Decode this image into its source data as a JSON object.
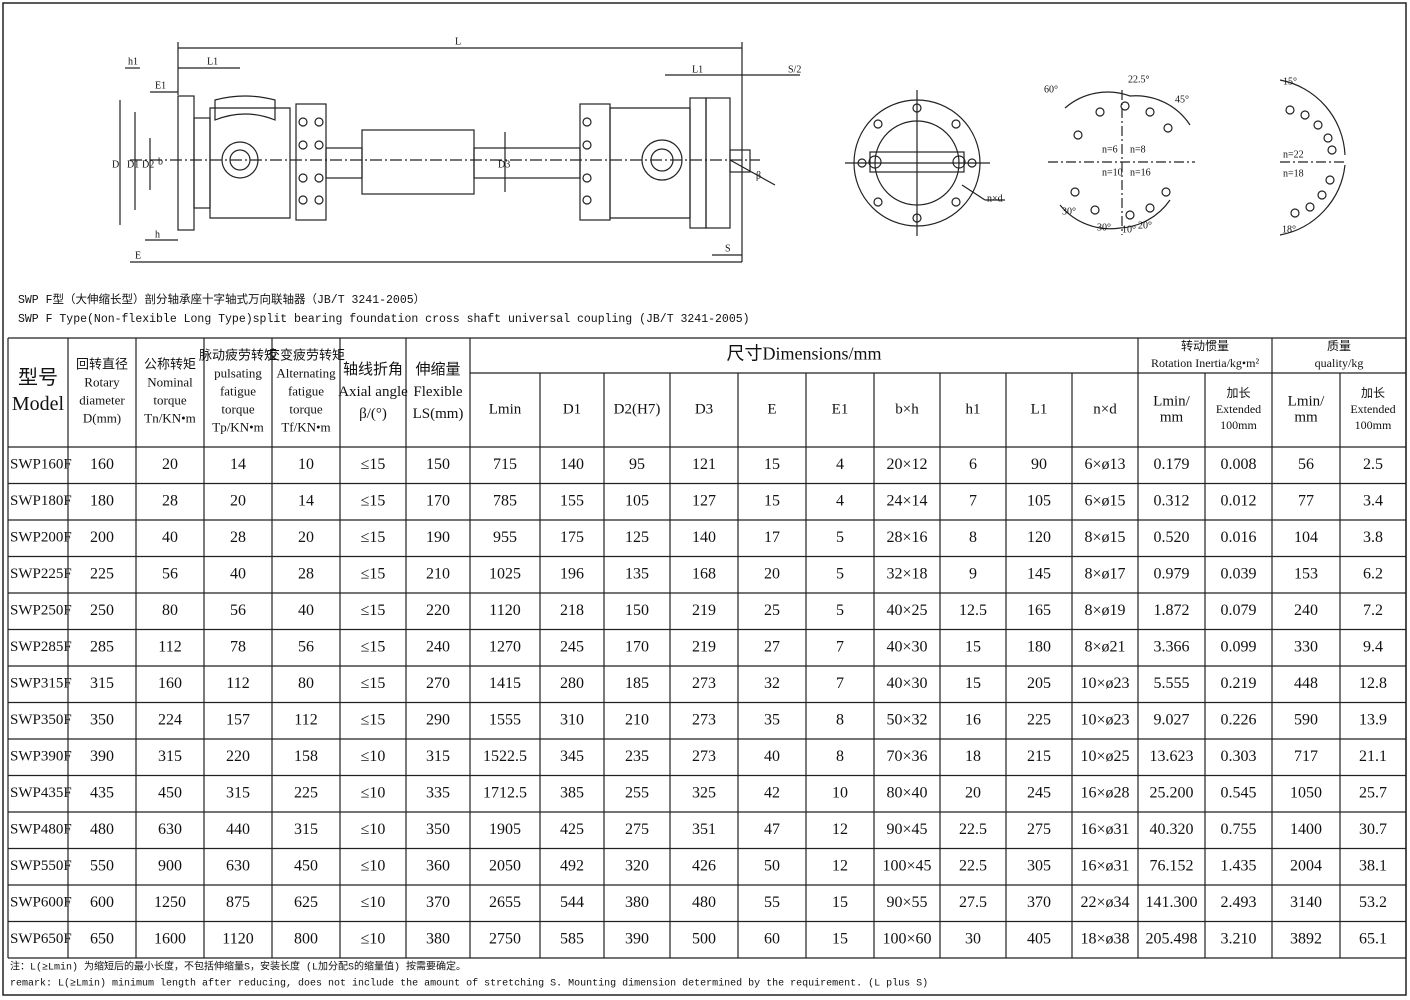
{
  "drawing": {
    "labels": [
      "L",
      "h1",
      "L1",
      "E1",
      "D",
      "D1",
      "D2",
      "b",
      "h",
      "E",
      "D3",
      "L1",
      "S/2",
      "β",
      "S",
      "n×d",
      "60°",
      "22.5°",
      "45°",
      "n=6",
      "n=8",
      "n=10",
      "n=16",
      "30°",
      "30°",
      "10°",
      "20°",
      "15°",
      "n=22",
      "n=18",
      "18°"
    ]
  },
  "caption": [
    "SWP F型（大伸缩长型）剖分轴承座十字轴式万向联轴器（JB/T 3241-2005）",
    "SWP F Type(Non-flexible Long Type)split bearing foundation cross shaft universal coupling  (JB/T 3241-2005)"
  ],
  "table": {
    "columns": [
      {
        "lines": [
          "型号",
          "Model"
        ]
      },
      {
        "lines": [
          "回转直径",
          "Rotary",
          "diameter",
          "D(mm)"
        ]
      },
      {
        "lines": [
          "公称转矩",
          "Nominal",
          "torque",
          "Tn/KN•m"
        ]
      },
      {
        "lines": [
          "脉动疲劳转矩",
          "pulsating",
          "fatigue",
          "torque",
          "Tp/KN•m"
        ]
      },
      {
        "lines": [
          "交变疲劳转矩",
          "Alternating",
          "fatigue",
          "torque",
          "Tf/KN•m"
        ]
      },
      {
        "lines": [
          "轴线折角",
          "Axial angle",
          "β/(°)"
        ]
      },
      {
        "lines": [
          "伸缩量",
          "Flexible",
          "LS(mm)"
        ]
      }
    ],
    "groups": [
      {
        "lines": [
          "尺寸Dimensions/mm"
        ],
        "subheaders": [
          {
            "lines": [
              "Lmin"
            ]
          },
          {
            "lines": [
              "D1"
            ]
          },
          {
            "lines": [
              "D2(H7)"
            ]
          },
          {
            "lines": [
              "D3"
            ]
          },
          {
            "lines": [
              "E"
            ]
          },
          {
            "lines": [
              "E1"
            ]
          },
          {
            "lines": [
              "b×h"
            ]
          },
          {
            "lines": [
              "h1"
            ]
          },
          {
            "lines": [
              "L1"
            ]
          },
          {
            "lines": [
              "n×d"
            ]
          }
        ]
      },
      {
        "lines": [
          "转动惯量",
          "Rotation Inertia/kg•m²"
        ],
        "subheaders": [
          {
            "lines": [
              "Lmin/",
              "mm"
            ]
          },
          {
            "lines": [
              "加长",
              "Extended",
              "100mm"
            ]
          }
        ]
      },
      {
        "lines": [
          "质量",
          "quality/kg"
        ],
        "subheaders": [
          {
            "lines": [
              "Lmin/",
              "mm"
            ]
          },
          {
            "lines": [
              "加长",
              "Extended",
              "100mm"
            ]
          }
        ]
      }
    ],
    "rows": [
      [
        "SWP160F",
        "160",
        "20",
        "14",
        "10",
        "≤15",
        "150",
        "715",
        "140",
        "95",
        "121",
        "15",
        "4",
        "20×12",
        "6",
        "90",
        "6×ø13",
        "0.179",
        "0.008",
        "56",
        "2.5"
      ],
      [
        "SWP180F",
        "180",
        "28",
        "20",
        "14",
        "≤15",
        "170",
        "785",
        "155",
        "105",
        "127",
        "15",
        "4",
        "24×14",
        "7",
        "105",
        "6×ø15",
        "0.312",
        "0.012",
        "77",
        "3.4"
      ],
      [
        "SWP200F",
        "200",
        "40",
        "28",
        "20",
        "≤15",
        "190",
        "955",
        "175",
        "125",
        "140",
        "17",
        "5",
        "28×16",
        "8",
        "120",
        "8×ø15",
        "0.520",
        "0.016",
        "104",
        "3.8"
      ],
      [
        "SWP225F",
        "225",
        "56",
        "40",
        "28",
        "≤15",
        "210",
        "1025",
        "196",
        "135",
        "168",
        "20",
        "5",
        "32×18",
        "9",
        "145",
        "8×ø17",
        "0.979",
        "0.039",
        "153",
        "6.2"
      ],
      [
        "SWP250F",
        "250",
        "80",
        "56",
        "40",
        "≤15",
        "220",
        "1120",
        "218",
        "150",
        "219",
        "25",
        "5",
        "40×25",
        "12.5",
        "165",
        "8×ø19",
        "1.872",
        "0.079",
        "240",
        "7.2"
      ],
      [
        "SWP285F",
        "285",
        "112",
        "78",
        "56",
        "≤15",
        "240",
        "1270",
        "245",
        "170",
        "219",
        "27",
        "7",
        "40×30",
        "15",
        "180",
        "8×ø21",
        "3.366",
        "0.099",
        "330",
        "9.4"
      ],
      [
        "SWP315F",
        "315",
        "160",
        "112",
        "80",
        "≤15",
        "270",
        "1415",
        "280",
        "185",
        "273",
        "32",
        "7",
        "40×30",
        "15",
        "205",
        "10×ø23",
        "5.555",
        "0.219",
        "448",
        "12.8"
      ],
      [
        "SWP350F",
        "350",
        "224",
        "157",
        "112",
        "≤15",
        "290",
        "1555",
        "310",
        "210",
        "273",
        "35",
        "8",
        "50×32",
        "16",
        "225",
        "10×ø23",
        "9.027",
        "0.226",
        "590",
        "13.9"
      ],
      [
        "SWP390F",
        "390",
        "315",
        "220",
        "158",
        "≤10",
        "315",
        "1522.5",
        "345",
        "235",
        "273",
        "40",
        "8",
        "70×36",
        "18",
        "215",
        "10×ø25",
        "13.623",
        "0.303",
        "717",
        "21.1"
      ],
      [
        "SWP435F",
        "435",
        "450",
        "315",
        "225",
        "≤10",
        "335",
        "1712.5",
        "385",
        "255",
        "325",
        "42",
        "10",
        "80×40",
        "20",
        "245",
        "16×ø28",
        "25.200",
        "0.545",
        "1050",
        "25.7"
      ],
      [
        "SWP480F",
        "480",
        "630",
        "440",
        "315",
        "≤10",
        "350",
        "1905",
        "425",
        "275",
        "351",
        "47",
        "12",
        "90×45",
        "22.5",
        "275",
        "16×ø31",
        "40.320",
        "0.755",
        "1400",
        "30.7"
      ],
      [
        "SWP550F",
        "550",
        "900",
        "630",
        "450",
        "≤10",
        "360",
        "2050",
        "492",
        "320",
        "426",
        "50",
        "12",
        "100×45",
        "22.5",
        "305",
        "16×ø31",
        "76.152",
        "1.435",
        "2004",
        "38.1"
      ],
      [
        "SWP600F",
        "600",
        "1250",
        "875",
        "625",
        "≤10",
        "370",
        "2655",
        "544",
        "380",
        "480",
        "55",
        "15",
        "90×55",
        "27.5",
        "370",
        "22×ø34",
        "141.300",
        "2.493",
        "3140",
        "53.2"
      ],
      [
        "SWP650F",
        "650",
        "1600",
        "1120",
        "800",
        "≤10",
        "380",
        "2750",
        "585",
        "390",
        "500",
        "60",
        "15",
        "100×60",
        "30",
        "405",
        "18×ø38",
        "205.498",
        "3.210",
        "3892",
        "65.1"
      ]
    ]
  },
  "notes": [
    "注：L(≥Lmin) 为缩短后的最小长度，不包括伸缩量S，安装长度 (L加分配S的缩量值) 按需要确定。",
    "remark: L(≥Lmin)  minimum length after reducing, does not include the amount of stretching S. Mounting dimension determined by the requirement. (L plus S)"
  ]
}
